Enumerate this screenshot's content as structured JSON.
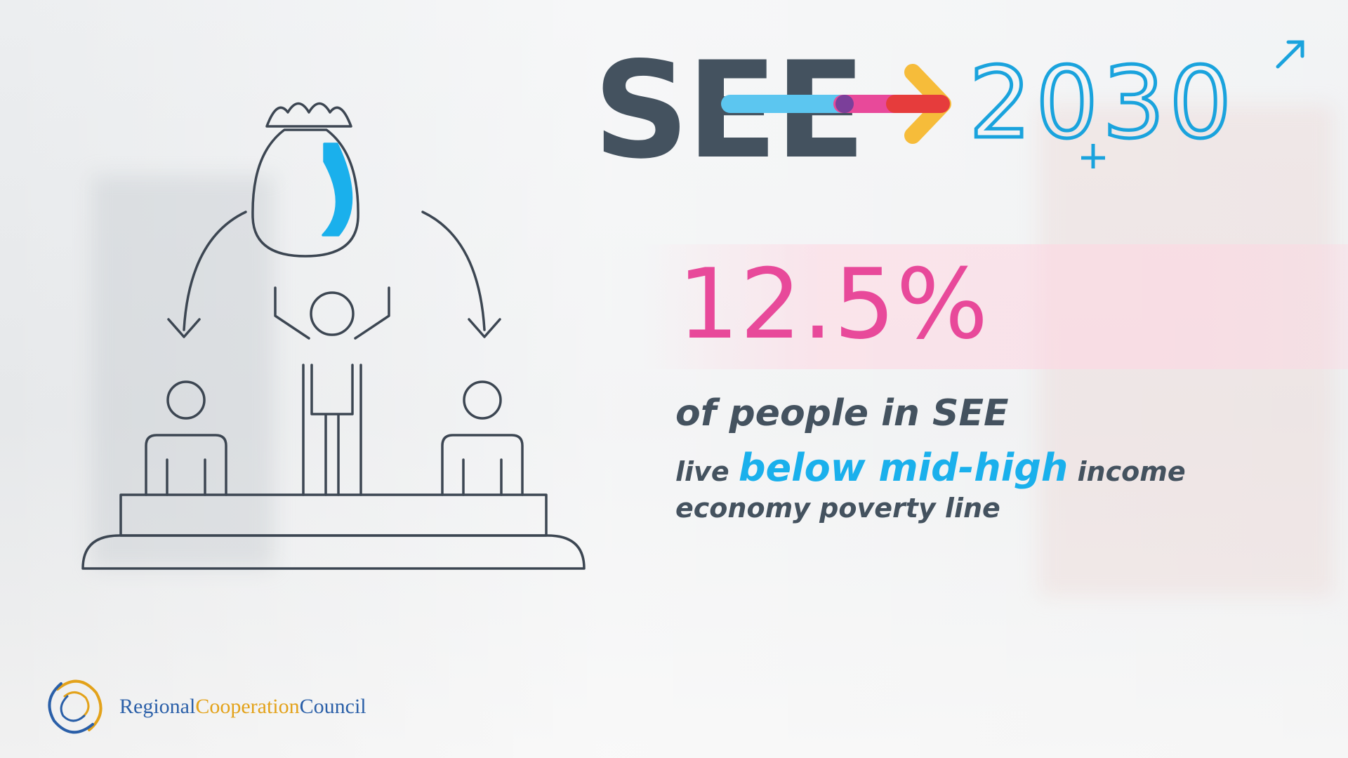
{
  "logo": {
    "left_text": "SEE",
    "right_text": "2030",
    "colors": {
      "dark": "#44525f",
      "blue": "#1aa3dd",
      "pink": "#e8499a",
      "yellow": "#f6bc3a",
      "red": "#e63c3c",
      "light_blue": "#5cc6f0"
    }
  },
  "statistic": {
    "value": "12.5%",
    "line1": "of people in SEE",
    "line2_pre": "live ",
    "line2_highlight": "below mid-high",
    "line2_post": " income",
    "line3": "economy poverty line",
    "colors": {
      "value": "#e8499a",
      "text": "#44525f",
      "highlight": "#1ab0ec"
    }
  },
  "illustration": {
    "icon": "money-bag-distribution-icon",
    "bag_symbol_color": "#1ab0ec",
    "line_color": "#3c4652"
  },
  "footer": {
    "org_part1": "Regional",
    "org_part2": "Cooperation",
    "org_part3": "Council",
    "colors": {
      "blue": "#2a5fa8",
      "gold": "#e3a21a"
    }
  }
}
